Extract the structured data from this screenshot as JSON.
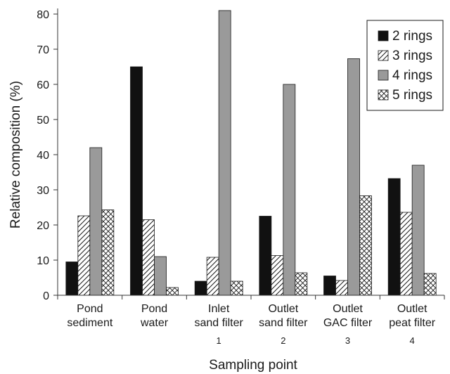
{
  "chart_data": {
    "type": "bar",
    "categories": [
      [
        "Pond",
        "sediment"
      ],
      [
        "Pond",
        "water"
      ],
      [
        "Inlet",
        "sand filter"
      ],
      [
        "Outlet",
        "sand filter"
      ],
      [
        "Outlet",
        "GAC filter"
      ],
      [
        "Outlet",
        "peat filter"
      ]
    ],
    "category_numbers": [
      "",
      "",
      "1",
      "2",
      "3",
      "4"
    ],
    "series": [
      {
        "name": "2 rings",
        "values": [
          9.5,
          65,
          4,
          22.5,
          5.5,
          33.2
        ],
        "fill": "solid-black"
      },
      {
        "name": "3 rings",
        "values": [
          22.6,
          21.5,
          10.8,
          11.3,
          4.2,
          23.6
        ],
        "fill": "diagonal-hatch"
      },
      {
        "name": "4 rings",
        "values": [
          42,
          11,
          81,
          60,
          67.3,
          37
        ],
        "fill": "solid-gray"
      },
      {
        "name": "5 rings",
        "values": [
          24.3,
          2.2,
          4,
          6.4,
          28.3,
          6.2
        ],
        "fill": "crosshatch"
      }
    ],
    "xlabel": "Sampling point",
    "ylabel": "Relative composition (%)",
    "ylim": [
      0,
      80
    ],
    "yticks": [
      0,
      10,
      20,
      30,
      40,
      50,
      60,
      70,
      80
    ],
    "legend_position": "top-right",
    "grid": false,
    "colors": {
      "black": "#111111",
      "gray": "#9a9a9a",
      "outline": "#1a1a1a"
    }
  }
}
